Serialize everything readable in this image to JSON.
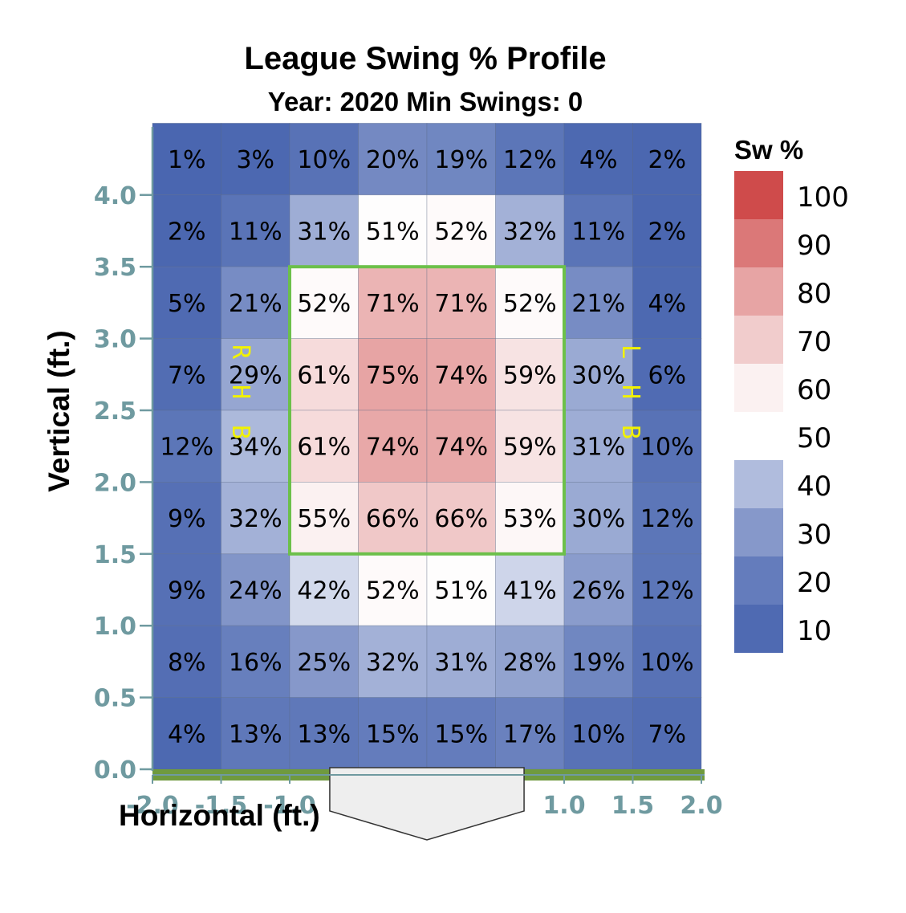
{
  "chart_data": {
    "type": "heatmap",
    "title": "League Swing % Profile",
    "subtitle": "Year: 2020 Min Swings: 0",
    "xlabel": "Horizontal (ft.)",
    "ylabel": "Vertical (ft.)",
    "xlim": [
      -2.0,
      2.0
    ],
    "ylim": [
      0.0,
      4.5
    ],
    "x_ticks": [
      "-2.0",
      "-1.5",
      "-1.0",
      "1.0",
      "1.5",
      "2.0"
    ],
    "x_tick_values": [
      -2.0,
      -1.5,
      -1.0,
      1.0,
      1.5,
      2.0
    ],
    "y_ticks": [
      "0.0",
      "0.5",
      "1.0",
      "1.5",
      "2.0",
      "2.5",
      "3.0",
      "3.5",
      "4.0"
    ],
    "y_tick_values": [
      0.0,
      0.5,
      1.0,
      1.5,
      2.0,
      2.5,
      3.0,
      3.5,
      4.0
    ],
    "cell_size": 0.5,
    "rows_top_to_bottom": [
      [
        1,
        3,
        10,
        20,
        19,
        12,
        4,
        2
      ],
      [
        2,
        11,
        31,
        51,
        52,
        32,
        11,
        2
      ],
      [
        5,
        21,
        52,
        71,
        71,
        52,
        21,
        4
      ],
      [
        7,
        29,
        61,
        75,
        74,
        59,
        30,
        6
      ],
      [
        12,
        34,
        61,
        74,
        74,
        59,
        31,
        10
      ],
      [
        9,
        32,
        55,
        66,
        66,
        53,
        30,
        12
      ],
      [
        9,
        24,
        42,
        52,
        51,
        41,
        26,
        12
      ],
      [
        8,
        16,
        25,
        32,
        31,
        28,
        19,
        10
      ],
      [
        4,
        13,
        13,
        15,
        15,
        17,
        10,
        7
      ]
    ],
    "unit_suffix": "%",
    "strike_zone": {
      "x": [
        -1.0,
        1.0
      ],
      "y": [
        1.5,
        3.5
      ],
      "color": "#6cc04a"
    },
    "legend": {
      "title": "Sw %",
      "labels": [
        "100",
        "90",
        "80",
        "70",
        "60",
        "50",
        "40",
        "30",
        "20",
        "10"
      ],
      "placement": "right"
    },
    "batter_labels": {
      "left": "RHB",
      "right": "LHB"
    },
    "colors": {
      "scale_low": "#4a66b0",
      "scale_mid": "#ffffff",
      "scale_high": "#c93434",
      "ground": "#6f9a3e",
      "plate_fill": "#eeeeee",
      "tick": "#6f9aa0"
    }
  }
}
